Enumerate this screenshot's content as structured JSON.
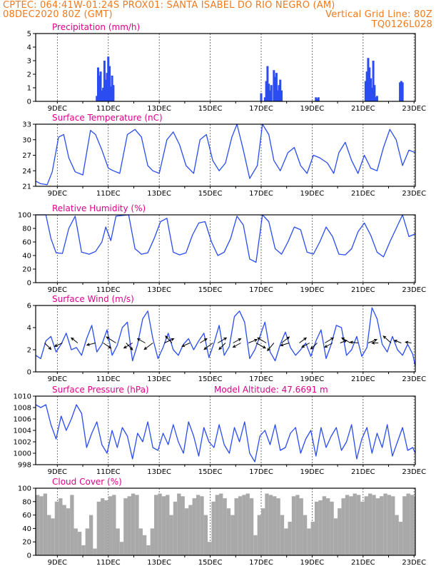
{
  "header": {
    "line1_left": "CPTEC:  064:41W-01:24S  PROX01: SANTA ISABEL DO RIO NEGRO (AM)",
    "line2_left": "08DEC2020 80Z (GMT)",
    "line2_right": "Vertical Grid Line: 80Z",
    "line3_right": "TQ0126L028"
  },
  "x_axis": {
    "labels": [
      "9DEC",
      "11DEC",
      "13DEC",
      "15DEC",
      "17DEC",
      "19DEC",
      "21DEC",
      "23DEC"
    ],
    "label_days": [
      1,
      3,
      5,
      7,
      9,
      11,
      13,
      15
    ],
    "day_range": [
      0.15,
      15.05
    ]
  },
  "chart_data": [
    {
      "id": "precip",
      "type": "bar",
      "title": "Precipitation (mm/h)",
      "ylim": [
        0,
        5
      ],
      "yticks": [
        0,
        1,
        2,
        3,
        4,
        5
      ],
      "color": "#2a4cf0",
      "x_days": [
        2.55,
        2.6,
        2.65,
        2.7,
        2.75,
        2.8,
        2.85,
        2.9,
        2.95,
        3.0,
        3.05,
        3.1,
        3.15,
        3.2,
        9.0,
        9.15,
        9.2,
        9.25,
        9.3,
        9.35,
        9.4,
        9.5,
        9.55,
        9.6,
        9.65,
        9.7,
        9.75,
        9.8,
        11.15,
        11.2,
        11.25,
        13.1,
        13.15,
        13.2,
        13.25,
        13.3,
        13.35,
        13.4,
        13.45,
        13.5,
        13.55,
        14.45,
        14.5,
        14.55
      ],
      "values": [
        0.4,
        2.5,
        1.9,
        2.2,
        0.8,
        1.0,
        3.0,
        1.6,
        2.1,
        3.3,
        2.6,
        1.1,
        1.9,
        1.2,
        0.6,
        0.3,
        1.5,
        2.6,
        1.3,
        0.8,
        1.2,
        2.3,
        1.8,
        2.1,
        0.8,
        1.2,
        1.6,
        0.8,
        0.3,
        0.2,
        0.3,
        1.5,
        2.2,
        3.2,
        2.5,
        1.7,
        1.0,
        3.0,
        1.2,
        0.3,
        0.4,
        1.4,
        1.5,
        1.4
      ]
    },
    {
      "id": "temperature",
      "type": "line",
      "title": "Surface Temperature (nC)",
      "ylim": [
        21,
        33
      ],
      "yticks": [
        21,
        24,
        27,
        30,
        33
      ],
      "color": "#2a4cf0",
      "x": [
        0.15,
        0.35,
        0.6,
        0.8,
        1.05,
        1.25,
        1.45,
        1.7,
        2.0,
        2.3,
        2.5,
        2.75,
        3.0,
        3.2,
        3.45,
        3.75,
        4.05,
        4.3,
        4.55,
        4.75,
        5.0,
        5.3,
        5.55,
        5.8,
        6.05,
        6.35,
        6.6,
        6.85,
        7.1,
        7.35,
        7.6,
        7.85,
        8.05,
        8.3,
        8.55,
        8.85,
        9.05,
        9.3,
        9.5,
        9.75,
        10.05,
        10.3,
        10.55,
        10.8,
        11.05,
        11.3,
        11.6,
        11.85,
        12.05,
        12.3,
        12.55,
        12.8,
        13.05,
        13.3,
        13.55,
        13.8,
        14.05,
        14.3,
        14.55,
        14.8,
        15.05
      ],
      "values": [
        22.0,
        21.5,
        21.3,
        23.8,
        30.5,
        31.0,
        26.5,
        23.8,
        23.2,
        31.8,
        31.0,
        28.0,
        24.5,
        24.0,
        23.5,
        31.0,
        32.0,
        30.5,
        25.0,
        24.0,
        23.5,
        30.0,
        31.5,
        29.0,
        25.0,
        23.5,
        30.0,
        31.0,
        26.0,
        24.0,
        25.5,
        30.5,
        33.0,
        28.0,
        22.5,
        25.0,
        33.0,
        31.0,
        26.0,
        24.0,
        27.5,
        28.5,
        25.0,
        23.5,
        27.0,
        26.5,
        25.5,
        23.5,
        27.5,
        29.5,
        26.0,
        23.5,
        27.0,
        24.5,
        24.0,
        28.5,
        32.0,
        30.0,
        25.0,
        28.0,
        27.5
      ]
    },
    {
      "id": "humidity",
      "type": "line",
      "title": "Relative Humidity (%)",
      "ylim": [
        0,
        100
      ],
      "yticks": [
        0,
        20,
        40,
        60,
        80,
        100
      ],
      "color": "#2a4cf0",
      "x": [
        0.15,
        0.55,
        0.75,
        0.95,
        1.2,
        1.45,
        1.7,
        1.95,
        2.25,
        2.5,
        2.75,
        2.9,
        3.1,
        3.3,
        3.55,
        3.8,
        4.05,
        4.3,
        4.55,
        4.8,
        5.05,
        5.3,
        5.55,
        5.8,
        6.05,
        6.3,
        6.55,
        6.8,
        7.05,
        7.3,
        7.55,
        7.8,
        8.05,
        8.3,
        8.55,
        8.8,
        9.05,
        9.3,
        9.55,
        9.8,
        10.05,
        10.3,
        10.55,
        10.8,
        11.05,
        11.3,
        11.55,
        11.8,
        12.05,
        12.3,
        12.55,
        12.8,
        13.05,
        13.3,
        13.55,
        13.8,
        14.05,
        14.3,
        14.55,
        14.8,
        15.05
      ],
      "values": [
        100,
        100,
        65,
        44,
        43,
        80,
        98,
        45,
        42,
        46,
        60,
        82,
        62,
        98,
        99,
        100,
        50,
        42,
        44,
        65,
        90,
        95,
        45,
        41,
        44,
        70,
        88,
        90,
        60,
        40,
        45,
        65,
        98,
        85,
        35,
        30,
        100,
        90,
        50,
        42,
        60,
        82,
        78,
        45,
        42,
        60,
        82,
        68,
        42,
        41,
        50,
        75,
        88,
        70,
        45,
        38,
        60,
        80,
        100,
        68,
        72
      ]
    },
    {
      "id": "wind",
      "type": "line",
      "title": "Surface Wind (m/s)",
      "ylim": [
        0,
        6
      ],
      "yticks": [
        0,
        2,
        4,
        6
      ],
      "color": "#2a4cf0",
      "x": [
        0.15,
        0.35,
        0.55,
        0.75,
        0.95,
        1.15,
        1.35,
        1.55,
        1.75,
        1.95,
        2.15,
        2.35,
        2.55,
        2.75,
        2.95,
        3.15,
        3.35,
        3.55,
        3.75,
        3.95,
        4.15,
        4.35,
        4.55,
        4.75,
        4.95,
        5.15,
        5.35,
        5.55,
        5.75,
        5.95,
        6.15,
        6.35,
        6.55,
        6.75,
        6.95,
        7.15,
        7.35,
        7.55,
        7.75,
        7.95,
        8.15,
        8.35,
        8.55,
        8.75,
        8.95,
        9.15,
        9.35,
        9.55,
        9.75,
        9.95,
        10.15,
        10.35,
        10.55,
        10.75,
        10.95,
        11.15,
        11.35,
        11.55,
        11.75,
        11.95,
        12.15,
        12.35,
        12.55,
        12.75,
        12.95,
        13.15,
        13.35,
        13.55,
        13.75,
        13.95,
        14.15,
        14.35,
        14.55,
        14.75,
        14.95,
        15.05
      ],
      "values": [
        1.5,
        1.2,
        2.8,
        3.2,
        1.8,
        2.5,
        3.5,
        2.0,
        2.2,
        1.5,
        3.0,
        4.2,
        1.8,
        2.5,
        3.8,
        1.5,
        2.4,
        4.0,
        4.5,
        1.0,
        2.5,
        4.8,
        5.5,
        3.0,
        1.2,
        2.2,
        3.5,
        2.0,
        1.5,
        2.5,
        3.0,
        2.0,
        2.8,
        3.5,
        1.3,
        2.6,
        4.2,
        1.5,
        2.3,
        5.0,
        5.5,
        4.5,
        1.2,
        2.0,
        3.2,
        4.5,
        1.8,
        1.0,
        2.5,
        3.6,
        2.2,
        1.5,
        2.0,
        2.6,
        1.4,
        2.8,
        3.8,
        1.2,
        2.5,
        4.2,
        4.0,
        1.5,
        2.0,
        3.2,
        1.4,
        2.2,
        5.8,
        4.8,
        2.5,
        1.8,
        3.2,
        2.0,
        1.5,
        2.5,
        1.6,
        0.5
      ],
      "arrows": {
        "x": [
          0.5,
          1.2,
          1.8,
          2.5,
          2.8,
          3.3,
          3.7,
          3.95,
          4.45,
          4.75,
          5.2,
          5.5,
          6.2,
          6.6,
          7.1,
          7.3,
          7.6,
          7.9,
          8.2,
          8.5,
          8.8,
          9.2,
          9.5,
          9.8,
          10.1,
          10.5,
          10.9,
          11.2,
          11.5,
          11.8,
          12.1,
          12.5,
          12.8,
          13.2,
          13.6,
          14.1,
          14.5,
          14.9
        ],
        "u": [
          1.5,
          -1.8,
          -1.5,
          -2.0,
          1.8,
          -2.2,
          1.5,
          -2.0,
          -1.8,
          -2.0,
          2.2,
          -1.5,
          -1.8,
          1.6,
          -2.0,
          2.0,
          -1.5,
          1.8,
          -1.8,
          2.0,
          2.2,
          -2.0,
          -1.5,
          1.8,
          -2.0,
          1.6,
          -1.8,
          -1.5,
          2.0,
          -1.8,
          1.5,
          -2.0,
          -1.8,
          2.0,
          -1.5,
          -1.8,
          -1.6,
          -1.4
        ],
        "v": [
          -1.5,
          -0.8,
          1.2,
          -0.5,
          -1.2,
          1.4,
          -1.6,
          -1.2,
          1.0,
          -1.5,
          1.0,
          1.6,
          -0.8,
          1.0,
          -1.5,
          1.2,
          -1.5,
          1.0,
          -1.0,
          0.8,
          -1.2,
          1.2,
          -1.8,
          1.4,
          -0.6,
          1.2,
          -1.0,
          -1.4,
          1.2,
          -1.0,
          0.6,
          1.2,
          0.2,
          0.8,
          0.0,
          1.6,
          0.6,
          0.2
        ]
      }
    },
    {
      "id": "pressure",
      "type": "line",
      "title": "Surface Pressure (hPa)",
      "ylim": [
        998,
        1010
      ],
      "yticks": [
        998,
        1000,
        1002,
        1004,
        1006,
        1008,
        1010
      ],
      "color": "#2a4cf0",
      "x": [
        0.15,
        0.35,
        0.55,
        0.75,
        0.95,
        1.15,
        1.35,
        1.55,
        1.75,
        1.95,
        2.15,
        2.35,
        2.55,
        2.75,
        2.95,
        3.15,
        3.35,
        3.55,
        3.75,
        3.95,
        4.15,
        4.35,
        4.55,
        4.75,
        4.95,
        5.15,
        5.35,
        5.55,
        5.75,
        5.95,
        6.15,
        6.35,
        6.55,
        6.75,
        6.95,
        7.15,
        7.35,
        7.55,
        7.75,
        7.95,
        8.15,
        8.35,
        8.55,
        8.75,
        8.95,
        9.15,
        9.35,
        9.55,
        9.75,
        9.95,
        10.15,
        10.35,
        10.55,
        10.75,
        10.95,
        11.15,
        11.35,
        11.55,
        11.75,
        11.95,
        12.15,
        12.35,
        12.55,
        12.75,
        12.95,
        13.15,
        13.35,
        13.55,
        13.75,
        13.95,
        14.15,
        14.35,
        14.55,
        14.75,
        14.95,
        15.05
      ],
      "values": [
        1008.5,
        1008.0,
        1008.5,
        1005.0,
        1002.5,
        1006.5,
        1004.0,
        1006.0,
        1008.5,
        1007.0,
        1001.0,
        1003.5,
        1005.5,
        1001.5,
        1000.0,
        1004.0,
        1001.0,
        1004.5,
        1003.0,
        999.0,
        1003.5,
        1002.0,
        1005.5,
        1001.0,
        1000.5,
        1003.5,
        1001.5,
        1005.0,
        1002.0,
        1000.0,
        1005.5,
        1003.0,
        999.5,
        1004.5,
        1002.0,
        1001.0,
        1005.0,
        1001.5,
        1000.0,
        1004.5,
        1002.0,
        1005.5,
        1000.0,
        998.5,
        1003.0,
        1004.0,
        1001.5,
        1005.0,
        1000.5,
        1001.0,
        1003.5,
        1004.5,
        1000.0,
        1002.5,
        1004.0,
        999.5,
        1004.5,
        1001.0,
        1003.0,
        1004.5,
        1000.5,
        1002.0,
        1005.0,
        999.0,
        1002.5,
        1004.5,
        1000.0,
        1003.5,
        1001.0,
        1005.0,
        999.5,
        1002.0,
        1004.5,
        1000.5,
        1001.0,
        1000.0
      ],
      "annotation": "Model Altitude: 47.6691 m"
    },
    {
      "id": "cloud",
      "type": "area",
      "title": "Cloud Cover (%)",
      "ylim": [
        0,
        100
      ],
      "yticks": [
        0,
        20,
        40,
        60,
        80,
        100
      ],
      "color": "#a9a9a9",
      "x": [
        0.15,
        0.3,
        0.45,
        0.6,
        0.75,
        0.9,
        1.05,
        1.2,
        1.35,
        1.5,
        1.65,
        1.8,
        1.95,
        2.1,
        2.25,
        2.4,
        2.55,
        2.7,
        2.85,
        3.0,
        3.15,
        3.3,
        3.45,
        3.6,
        3.75,
        3.9,
        4.05,
        4.2,
        4.35,
        4.5,
        4.65,
        4.8,
        4.95,
        5.1,
        5.25,
        5.4,
        5.55,
        5.7,
        5.85,
        6.0,
        6.15,
        6.3,
        6.45,
        6.6,
        6.75,
        6.9,
        7.05,
        7.2,
        7.35,
        7.5,
        7.65,
        7.8,
        7.95,
        8.1,
        8.25,
        8.4,
        8.55,
        8.7,
        8.85,
        9.0,
        9.15,
        9.3,
        9.45,
        9.6,
        9.75,
        9.9,
        10.05,
        10.2,
        10.35,
        10.5,
        10.65,
        10.8,
        10.95,
        11.1,
        11.25,
        11.4,
        11.55,
        11.7,
        11.85,
        12.0,
        12.15,
        12.3,
        12.45,
        12.6,
        12.75,
        12.9,
        13.05,
        13.2,
        13.35,
        13.5,
        13.65,
        13.8,
        13.95,
        14.1,
        14.25,
        14.4,
        14.55,
        14.7,
        14.85,
        15.0,
        15.05
      ],
      "values": [
        90,
        88,
        92,
        60,
        55,
        80,
        85,
        75,
        70,
        90,
        40,
        35,
        15,
        40,
        60,
        10,
        80,
        85,
        82,
        88,
        90,
        40,
        20,
        85,
        88,
        92,
        90,
        40,
        30,
        15,
        40,
        90,
        92,
        88,
        90,
        60,
        80,
        92,
        88,
        70,
        75,
        85,
        90,
        88,
        60,
        20,
        80,
        90,
        92,
        85,
        70,
        60,
        85,
        88,
        90,
        92,
        85,
        30,
        60,
        70,
        92,
        90,
        88,
        85,
        60,
        40,
        50,
        88,
        90,
        85,
        60,
        40,
        50,
        80,
        82,
        88,
        85,
        80,
        55,
        70,
        85,
        90,
        88,
        92,
        90,
        80,
        88,
        92,
        90,
        85,
        88,
        92,
        90,
        88,
        60,
        50,
        88,
        92,
        90,
        88,
        90
      ]
    }
  ]
}
